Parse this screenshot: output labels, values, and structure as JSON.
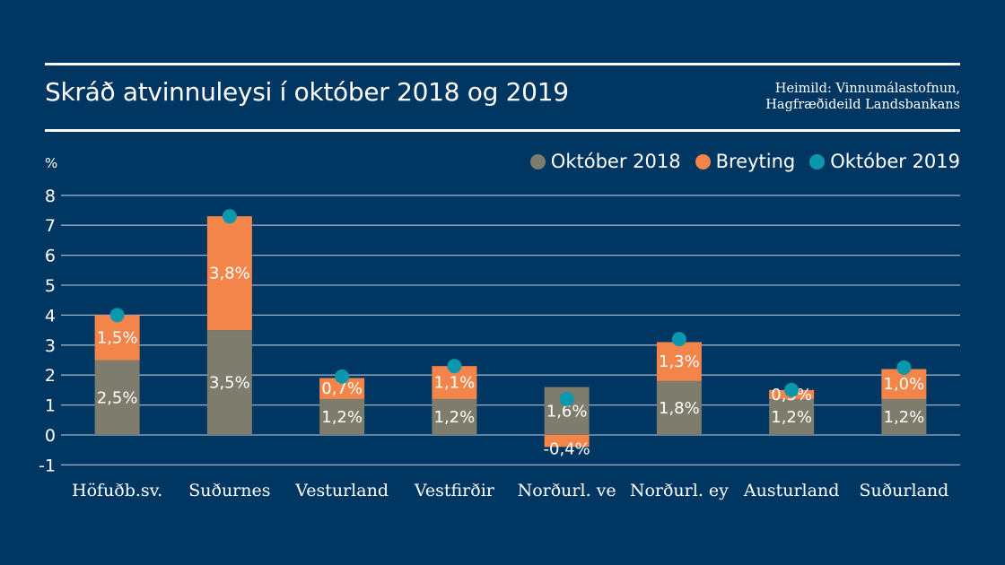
{
  "header": {
    "title": "Skráð atvinnuleysi í október 2018 og 2019",
    "source_line1": "Heimild: Vinnumálastofnun,",
    "source_line2": "Hagfræðideild Landsbankans"
  },
  "colors": {
    "background": "#003762",
    "oct2018": "#7e7c6c",
    "change": "#f4854a",
    "oct2019": "#0b98ae",
    "grid": "#9db0c4",
    "text": "#ffffff"
  },
  "legend": [
    {
      "label": "Október 2018",
      "color": "#7e7c6c"
    },
    {
      "label": "Breyting",
      "color": "#f4854a"
    },
    {
      "label": "Október 2019",
      "color": "#0b98ae"
    }
  ],
  "chart_data": {
    "type": "bar",
    "stacked": true,
    "title": "Skráð atvinnuleysi í október 2018 og 2019",
    "ylabel": "%",
    "xlabel": "",
    "ylim": [
      -1,
      8
    ],
    "yticks": [
      -1,
      0,
      1,
      2,
      3,
      4,
      5,
      6,
      7,
      8
    ],
    "grid": true,
    "legend_position": "top-right",
    "categories": [
      "Höfuðb.sv.",
      "Suðurnes",
      "Vesturland",
      "Vestfirðir",
      "Norðurl. ve",
      "Norðurl. ey",
      "Austurland",
      "Suðurland"
    ],
    "series": [
      {
        "name": "Október 2018",
        "kind": "bar",
        "values": [
          2.5,
          3.5,
          1.2,
          1.2,
          1.6,
          1.8,
          1.2,
          1.2
        ],
        "labels": [
          "2,5%",
          "3,5%",
          "1,2%",
          "1,2%",
          "1,6%",
          "1,8%",
          "1,2%",
          "1,2%"
        ]
      },
      {
        "name": "Breyting",
        "kind": "bar",
        "values": [
          1.5,
          3.8,
          0.7,
          1.1,
          -0.4,
          1.3,
          0.3,
          1.0
        ],
        "labels": [
          "1,5%",
          "3,8%",
          "0,7%",
          "1,1%",
          "-0,4%",
          "1,3%",
          "0,3%",
          "1,0%"
        ]
      },
      {
        "name": "Október 2019",
        "kind": "point",
        "values": [
          4.0,
          7.3,
          1.95,
          2.3,
          1.2,
          3.2,
          1.5,
          2.25
        ]
      }
    ]
  }
}
